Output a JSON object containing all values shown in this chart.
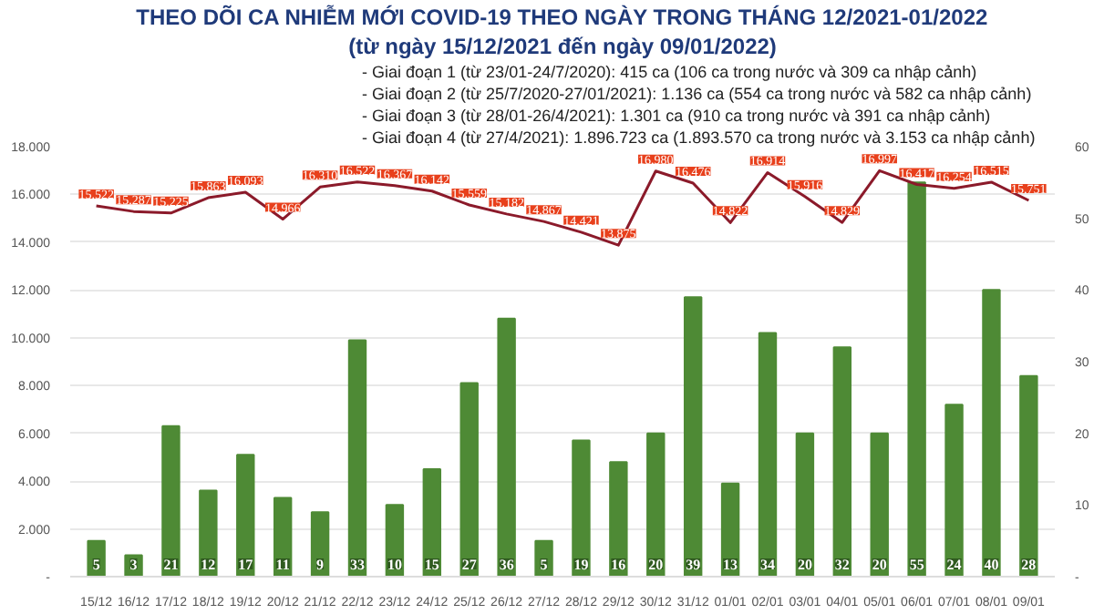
{
  "chart_data": {
    "type": "bar",
    "title": "THEO DÕI CA NHIỄM MỚI COVID-19 THEO NGÀY TRONG THÁNG 12/2021-01/2022",
    "subtitle": "(từ ngày 15/12/2021 đến ngày 09/01/2022)",
    "annotations": [
      "- Giai đoạn 1 (từ 23/01-24/7/2020): 415 ca (106 ca trong nước và 309 ca nhập cảnh)",
      "- Giai đoạn 2 (từ 25/7/2020-27/01/2021): 1.136 ca (554 ca trong nước và 582 ca nhập cảnh)",
      "- Giai đoạn 3 (từ 28/01-26/4/2021): 1.301 ca (910 ca trong nước và 391 ca nhập cảnh)",
      "- Giai đoạn 4 (từ 27/4/2021): 1.896.723 ca (1.893.570 ca trong nước và 3.153 ca nhập cảnh)"
    ],
    "categories": [
      "15/12",
      "16/12",
      "17/12",
      "18/12",
      "19/12",
      "20/12",
      "21/12",
      "22/12",
      "23/12",
      "24/12",
      "25/12",
      "26/12",
      "27/12",
      "28/12",
      "29/12",
      "30/12",
      "31/12",
      "01/01",
      "02/01",
      "03/01",
      "04/01",
      "05/01",
      "06/01",
      "07/01",
      "08/01",
      "09/01"
    ],
    "series": [
      {
        "axis": "y2",
        "color": "#4e8a35",
        "values": [
          5,
          3,
          21,
          12,
          17,
          11,
          9,
          33,
          10,
          15,
          27,
          36,
          5,
          19,
          16,
          20,
          39,
          13,
          34,
          20,
          32,
          20,
          55,
          24,
          40,
          28
        ],
        "value_labels": [
          "5",
          "3",
          "21",
          "12",
          "17",
          "11",
          "9",
          "33",
          "10",
          "15",
          "27",
          "36",
          "5",
          "19",
          "16",
          "20",
          "39",
          "13",
          "34",
          "20",
          "32",
          "20",
          "55",
          "24",
          "40",
          "28"
        ]
      },
      {
        "type": "line",
        "color": "#8b1a2a",
        "values": [
          15522,
          15287,
          15225,
          15863,
          16093,
          14966,
          16310,
          16522,
          16367,
          16142,
          15559,
          15182,
          14867,
          14421,
          13875,
          16980,
          16476,
          14822,
          16914,
          15916,
          14829,
          16997,
          16417,
          16254,
          16515,
          15751
        ],
        "value_labels": [
          "15.522",
          "15.287",
          "15.225",
          "15.863",
          "16.093",
          "14.966",
          "16.310",
          "16.522",
          "16.367",
          "16.142",
          "15.559",
          "15.182",
          "14.867",
          "14.421",
          "13.875",
          "16.980",
          "16.476",
          "14.822",
          "16.914",
          "15.916",
          "14.829",
          "16.997",
          "16.417",
          "16.254",
          "16.515",
          "15.751"
        ]
      }
    ],
    "ylim": [
      0,
      18000
    ],
    "yticks": [
      {
        "value": 0,
        "label": "-"
      },
      {
        "value": 2000,
        "label": "2.000"
      },
      {
        "value": 4000,
        "label": "4.000"
      },
      {
        "value": 6000,
        "label": "6.000"
      },
      {
        "value": 8000,
        "label": "8.000"
      },
      {
        "value": 10000,
        "label": "10.000"
      },
      {
        "value": 12000,
        "label": "12.000"
      },
      {
        "value": 14000,
        "label": "14.000"
      },
      {
        "value": 16000,
        "label": "16.000"
      },
      {
        "value": 18000,
        "label": "18.000"
      }
    ],
    "y2lim": [
      0,
      60
    ],
    "y2ticks": [
      {
        "value": 0,
        "label": "-"
      },
      10,
      20,
      30,
      40,
      50,
      60
    ],
    "grid": "y"
  }
}
